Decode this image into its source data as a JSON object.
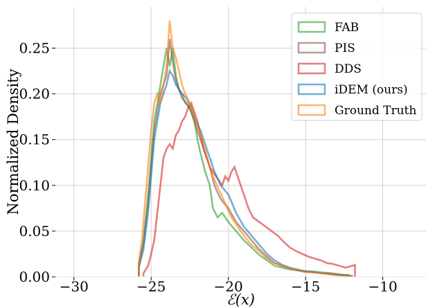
{
  "chart_data": {
    "type": "histogram",
    "title": "",
    "xlabel": "ℰ(x)",
    "ylabel": "Normalized Density",
    "xlim": [
      -31.2,
      -7.2
    ],
    "ylim": [
      0,
      0.295
    ],
    "xticks": [
      -30,
      -25,
      -20,
      -15,
      -10
    ],
    "xtick_labels": [
      "−30",
      "−25",
      "−20",
      "−15",
      "−10"
    ],
    "yticks": [
      0.0,
      0.05,
      0.1,
      0.15,
      0.2,
      0.25
    ],
    "ytick_labels": [
      "0.00",
      "0.05",
      "0.10",
      "0.15",
      "0.20",
      "0.25"
    ],
    "grid": true,
    "legend_position": "top-right",
    "series": [
      {
        "name": "FAB",
        "color": "#2ca02c",
        "points": [
          [
            -25.8,
            0.0
          ],
          [
            -25.8,
            0.015
          ],
          [
            -25.5,
            0.04
          ],
          [
            -25.2,
            0.09
          ],
          [
            -25.0,
            0.13
          ],
          [
            -24.8,
            0.17
          ],
          [
            -24.5,
            0.2
          ],
          [
            -24.2,
            0.23
          ],
          [
            -24.0,
            0.25
          ],
          [
            -23.8,
            0.23
          ],
          [
            -23.6,
            0.25
          ],
          [
            -23.4,
            0.22
          ],
          [
            -23.2,
            0.205
          ],
          [
            -23.0,
            0.2
          ],
          [
            -22.8,
            0.19
          ],
          [
            -22.5,
            0.185
          ],
          [
            -22.2,
            0.17
          ],
          [
            -22.0,
            0.15
          ],
          [
            -21.8,
            0.135
          ],
          [
            -21.5,
            0.115
          ],
          [
            -21.2,
            0.1
          ],
          [
            -21.0,
            0.075
          ],
          [
            -20.7,
            0.065
          ],
          [
            -20.4,
            0.07
          ],
          [
            -20.0,
            0.06
          ],
          [
            -19.5,
            0.05
          ],
          [
            -19.0,
            0.04
          ],
          [
            -18.5,
            0.032
          ],
          [
            -18.0,
            0.024
          ],
          [
            -17.5,
            0.018
          ],
          [
            -17.0,
            0.012
          ],
          [
            -16.5,
            0.01
          ],
          [
            -16.0,
            0.008
          ],
          [
            -15.5,
            0.007
          ],
          [
            -15.0,
            0.006
          ],
          [
            -14.5,
            0.006
          ],
          [
            -14.0,
            0.005
          ],
          [
            -13.5,
            0.004
          ],
          [
            -13.0,
            0.003
          ],
          [
            -12.5,
            0.002
          ],
          [
            -12.2,
            0.002
          ],
          [
            -12.2,
            0.0
          ]
        ]
      },
      {
        "name": "PIS",
        "color": "#8c564b",
        "points": [
          [
            -25.8,
            0.0
          ],
          [
            -25.8,
            0.012
          ],
          [
            -25.5,
            0.035
          ],
          [
            -25.2,
            0.08
          ],
          [
            -25.0,
            0.12
          ],
          [
            -24.8,
            0.16
          ],
          [
            -24.6,
            0.18
          ],
          [
            -24.4,
            0.2
          ],
          [
            -24.2,
            0.21
          ],
          [
            -24.0,
            0.22
          ],
          [
            -23.8,
            0.26
          ],
          [
            -23.6,
            0.235
          ],
          [
            -23.4,
            0.215
          ],
          [
            -23.2,
            0.205
          ],
          [
            -23.0,
            0.195
          ],
          [
            -22.7,
            0.19
          ],
          [
            -22.4,
            0.18
          ],
          [
            -22.1,
            0.165
          ],
          [
            -21.8,
            0.15
          ],
          [
            -21.5,
            0.135
          ],
          [
            -21.2,
            0.12
          ],
          [
            -20.9,
            0.1
          ],
          [
            -20.5,
            0.085
          ],
          [
            -20.0,
            0.075
          ],
          [
            -19.5,
            0.06
          ],
          [
            -19.0,
            0.05
          ],
          [
            -18.5,
            0.04
          ],
          [
            -18.0,
            0.03
          ],
          [
            -17.5,
            0.022
          ],
          [
            -17.0,
            0.015
          ],
          [
            -16.5,
            0.012
          ],
          [
            -16.0,
            0.009
          ],
          [
            -15.5,
            0.007
          ],
          [
            -15.0,
            0.006
          ],
          [
            -14.5,
            0.005
          ],
          [
            -14.0,
            0.004
          ],
          [
            -13.5,
            0.004
          ],
          [
            -13.0,
            0.003
          ],
          [
            -12.5,
            0.002
          ],
          [
            -12.0,
            0.001
          ],
          [
            -12.0,
            0.0
          ]
        ]
      },
      {
        "name": "DDS",
        "color": "#d62728",
        "points": [
          [
            -25.5,
            0.0
          ],
          [
            -25.5,
            0.004
          ],
          [
            -25.2,
            0.012
          ],
          [
            -25.0,
            0.025
          ],
          [
            -24.8,
            0.04
          ],
          [
            -24.6,
            0.07
          ],
          [
            -24.4,
            0.1
          ],
          [
            -24.2,
            0.13
          ],
          [
            -24.0,
            0.14
          ],
          [
            -23.8,
            0.145
          ],
          [
            -23.6,
            0.14
          ],
          [
            -23.4,
            0.155
          ],
          [
            -23.2,
            0.16
          ],
          [
            -23.0,
            0.17
          ],
          [
            -22.8,
            0.175
          ],
          [
            -22.6,
            0.185
          ],
          [
            -22.4,
            0.19
          ],
          [
            -22.2,
            0.18
          ],
          [
            -22.0,
            0.17
          ],
          [
            -21.8,
            0.155
          ],
          [
            -21.6,
            0.14
          ],
          [
            -21.4,
            0.13
          ],
          [
            -21.2,
            0.12
          ],
          [
            -21.0,
            0.115
          ],
          [
            -20.8,
            0.11
          ],
          [
            -20.6,
            0.105
          ],
          [
            -20.4,
            0.1
          ],
          [
            -20.2,
            0.11
          ],
          [
            -20.0,
            0.105
          ],
          [
            -19.8,
            0.115
          ],
          [
            -19.6,
            0.12
          ],
          [
            -19.4,
            0.11
          ],
          [
            -19.2,
            0.1
          ],
          [
            -19.0,
            0.09
          ],
          [
            -18.7,
            0.075
          ],
          [
            -18.4,
            0.065
          ],
          [
            -18.0,
            0.06
          ],
          [
            -17.6,
            0.055
          ],
          [
            -17.2,
            0.05
          ],
          [
            -16.8,
            0.045
          ],
          [
            -16.4,
            0.038
          ],
          [
            -16.0,
            0.032
          ],
          [
            -15.6,
            0.028
          ],
          [
            -15.2,
            0.025
          ],
          [
            -14.8,
            0.022
          ],
          [
            -14.4,
            0.02
          ],
          [
            -14.0,
            0.018
          ],
          [
            -13.6,
            0.015
          ],
          [
            -13.2,
            0.014
          ],
          [
            -12.8,
            0.012
          ],
          [
            -12.4,
            0.01
          ],
          [
            -12.0,
            0.012
          ],
          [
            -11.8,
            0.013
          ],
          [
            -11.8,
            0.0
          ]
        ]
      },
      {
        "name": "iDEM (ours)",
        "color": "#1f77b4",
        "points": [
          [
            -25.8,
            0.0
          ],
          [
            -25.8,
            0.01
          ],
          [
            -25.5,
            0.03
          ],
          [
            -25.2,
            0.07
          ],
          [
            -25.0,
            0.11
          ],
          [
            -24.8,
            0.15
          ],
          [
            -24.6,
            0.17
          ],
          [
            -24.4,
            0.19
          ],
          [
            -24.2,
            0.2
          ],
          [
            -24.0,
            0.21
          ],
          [
            -23.8,
            0.225
          ],
          [
            -23.6,
            0.22
          ],
          [
            -23.4,
            0.21
          ],
          [
            -23.2,
            0.205
          ],
          [
            -23.0,
            0.2
          ],
          [
            -22.7,
            0.195
          ],
          [
            -22.4,
            0.185
          ],
          [
            -22.1,
            0.17
          ],
          [
            -21.8,
            0.16
          ],
          [
            -21.5,
            0.145
          ],
          [
            -21.2,
            0.13
          ],
          [
            -20.9,
            0.115
          ],
          [
            -20.5,
            0.1
          ],
          [
            -20.0,
            0.09
          ],
          [
            -19.5,
            0.07
          ],
          [
            -19.0,
            0.055
          ],
          [
            -18.5,
            0.045
          ],
          [
            -18.0,
            0.035
          ],
          [
            -17.5,
            0.025
          ],
          [
            -17.0,
            0.018
          ],
          [
            -16.5,
            0.013
          ],
          [
            -16.0,
            0.01
          ],
          [
            -15.5,
            0.008
          ],
          [
            -15.0,
            0.006
          ],
          [
            -14.5,
            0.005
          ],
          [
            -14.0,
            0.004
          ],
          [
            -13.5,
            0.003
          ],
          [
            -13.0,
            0.002
          ],
          [
            -12.5,
            0.002
          ],
          [
            -12.0,
            0.001
          ],
          [
            -12.0,
            0.0
          ]
        ]
      },
      {
        "name": "Ground Truth",
        "color": "#ff7f0e",
        "points": [
          [
            -25.8,
            0.0
          ],
          [
            -25.8,
            0.015
          ],
          [
            -25.6,
            0.04
          ],
          [
            -25.4,
            0.08
          ],
          [
            -25.2,
            0.12
          ],
          [
            -25.0,
            0.16
          ],
          [
            -24.8,
            0.19
          ],
          [
            -24.6,
            0.2
          ],
          [
            -24.4,
            0.19
          ],
          [
            -24.2,
            0.21
          ],
          [
            -24.0,
            0.23
          ],
          [
            -23.8,
            0.28
          ],
          [
            -23.6,
            0.25
          ],
          [
            -23.4,
            0.24
          ],
          [
            -23.2,
            0.225
          ],
          [
            -23.0,
            0.21
          ],
          [
            -22.8,
            0.2
          ],
          [
            -22.5,
            0.19
          ],
          [
            -22.2,
            0.175
          ],
          [
            -21.9,
            0.16
          ],
          [
            -21.6,
            0.145
          ],
          [
            -21.3,
            0.125
          ],
          [
            -21.0,
            0.11
          ],
          [
            -20.6,
            0.095
          ],
          [
            -20.2,
            0.08
          ],
          [
            -19.8,
            0.065
          ],
          [
            -19.4,
            0.055
          ],
          [
            -19.0,
            0.045
          ],
          [
            -18.5,
            0.035
          ],
          [
            -18.0,
            0.028
          ],
          [
            -17.5,
            0.02
          ],
          [
            -17.0,
            0.015
          ],
          [
            -16.5,
            0.012
          ],
          [
            -16.0,
            0.009
          ],
          [
            -15.5,
            0.007
          ],
          [
            -15.0,
            0.005
          ],
          [
            -14.5,
            0.005
          ],
          [
            -14.0,
            0.004
          ],
          [
            -13.5,
            0.003
          ],
          [
            -13.0,
            0.002
          ],
          [
            -12.5,
            0.001
          ],
          [
            -12.0,
            0.001
          ],
          [
            -12.0,
            0.0
          ]
        ]
      }
    ]
  }
}
